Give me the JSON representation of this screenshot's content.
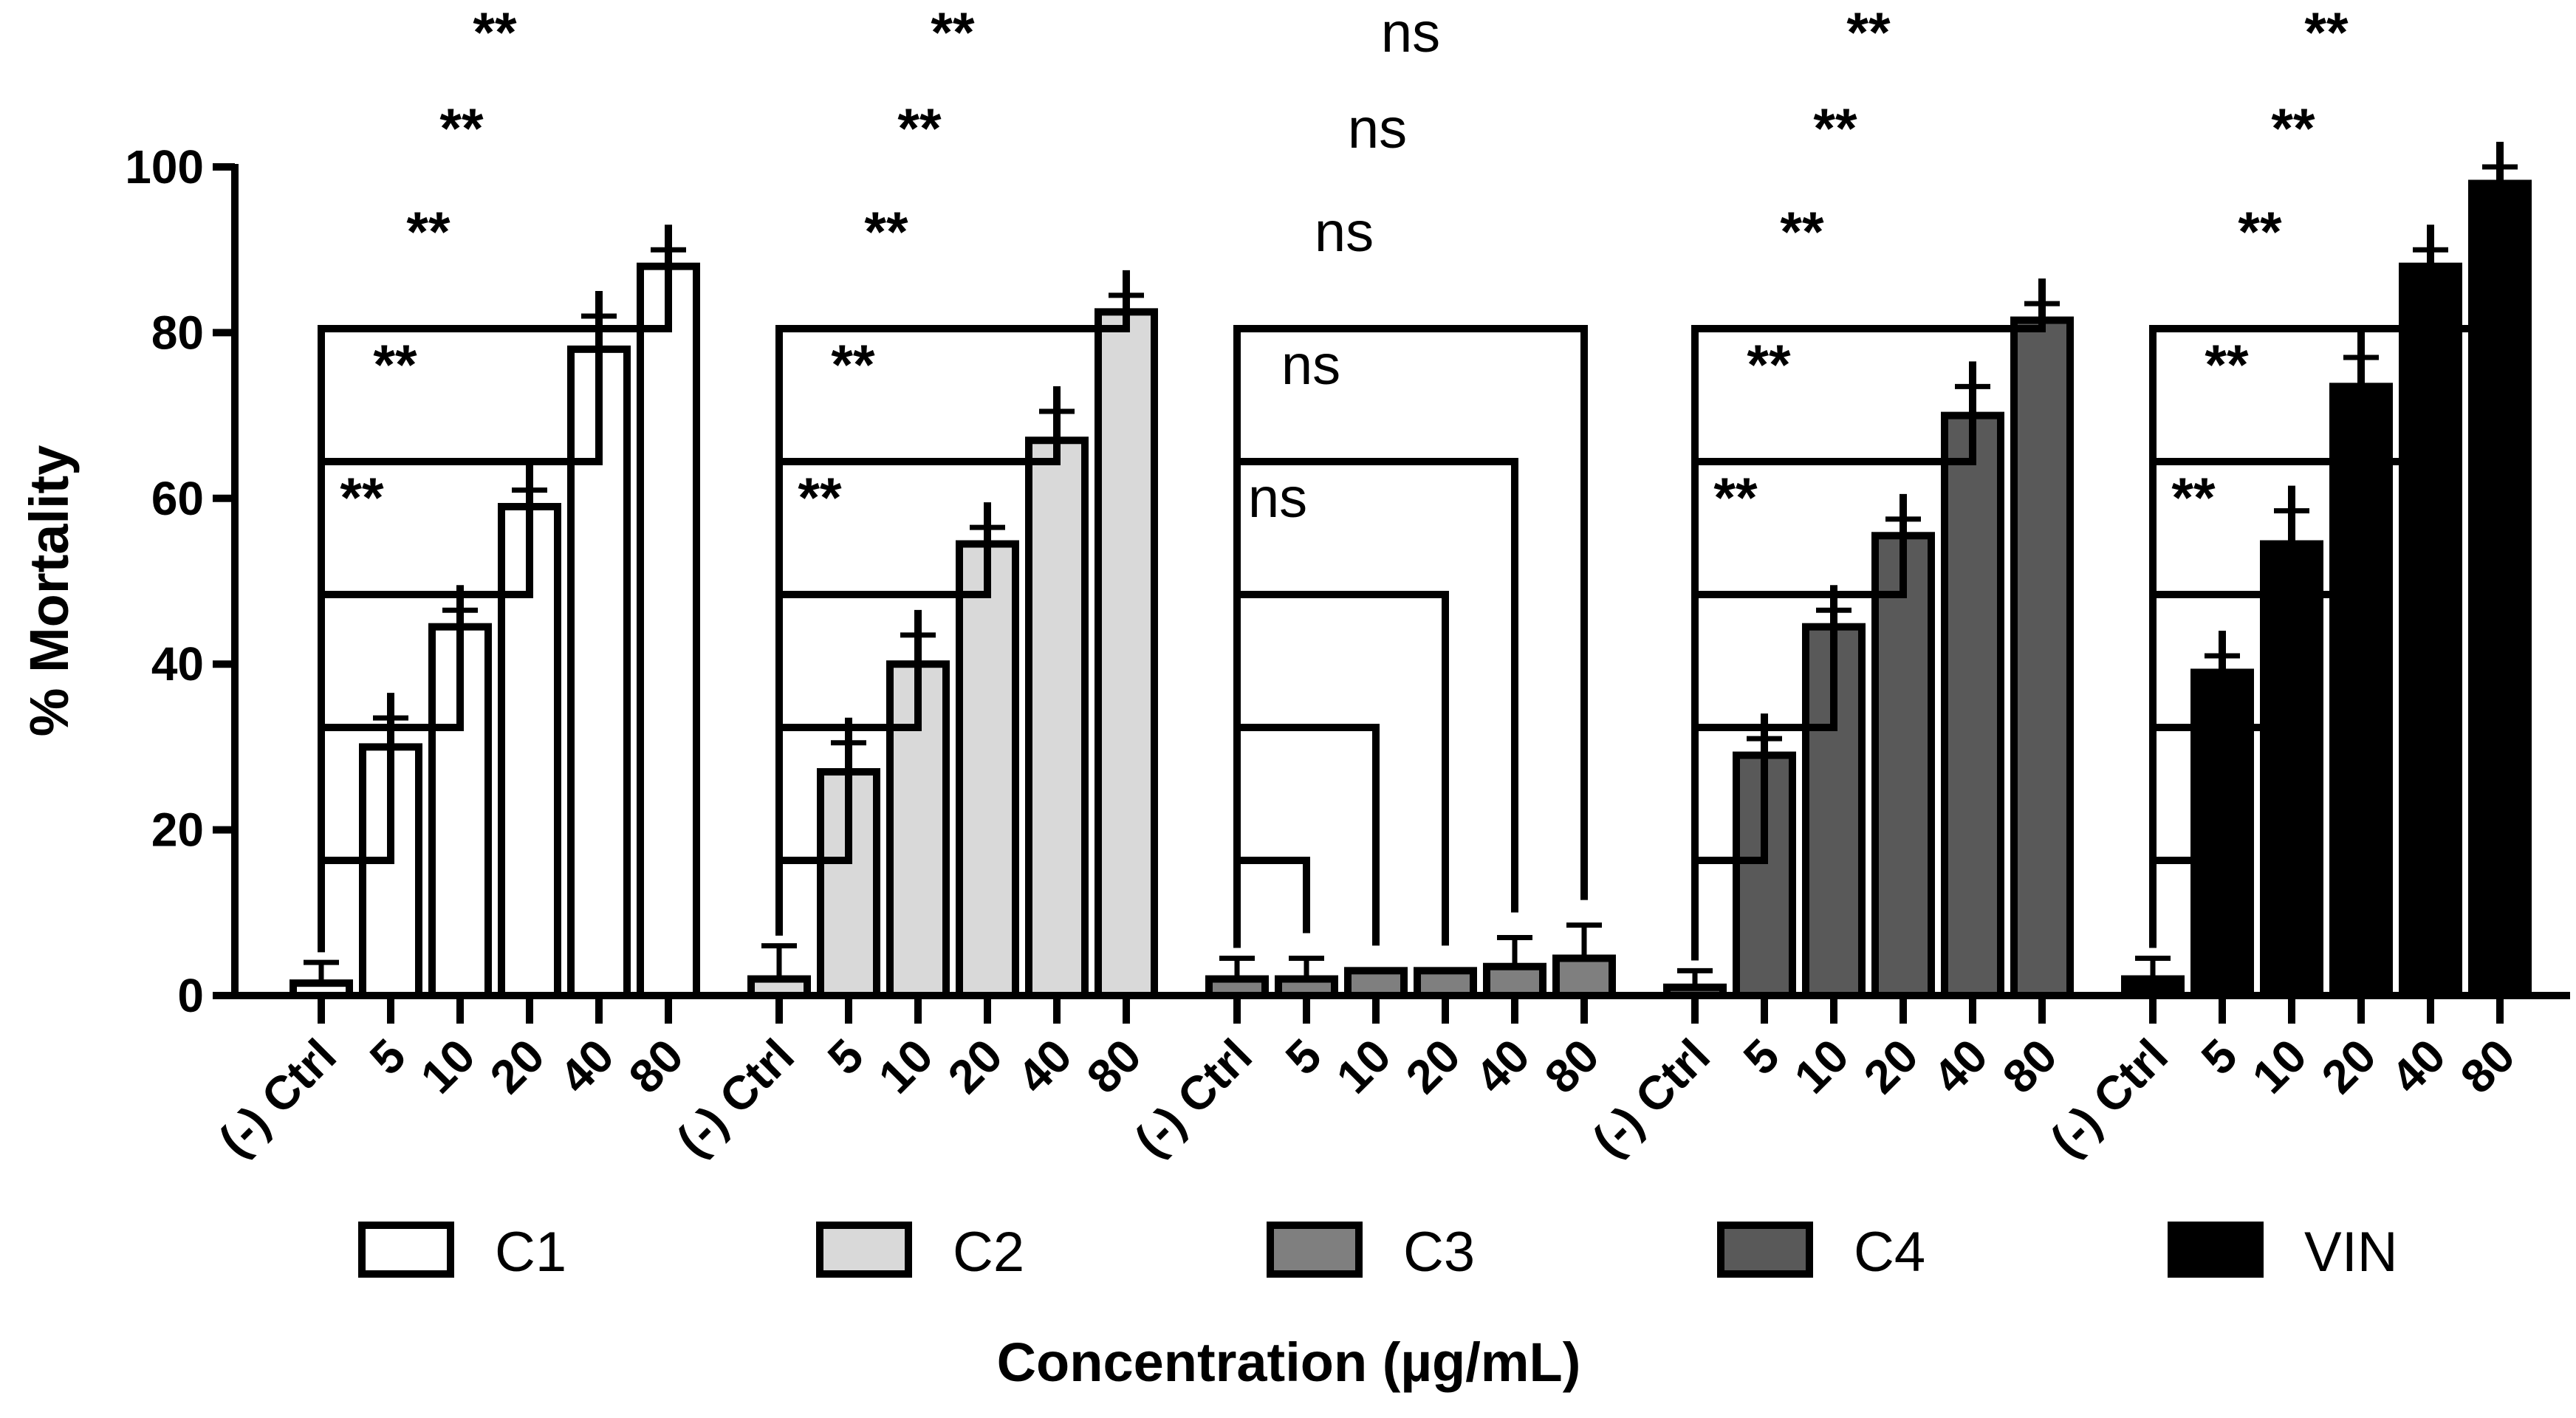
{
  "chart_data": {
    "type": "bar",
    "title": "",
    "xlabel": "Concentration (µg/mL)",
    "ylabel": "% Mortality",
    "ylim": [
      0,
      100
    ],
    "yticks": [
      "0",
      "20",
      "40",
      "60",
      "80",
      "100"
    ],
    "categories": [
      "(-) Ctrl",
      "5",
      "10",
      "20",
      "40",
      "80"
    ],
    "series": [
      {
        "name": "C1",
        "color": "#ffffff",
        "values": [
          1.5,
          30,
          44.5,
          59,
          78,
          88
        ],
        "errors": [
          2.5,
          3.5,
          2,
          2,
          4,
          2
        ],
        "significance": [
          "**",
          "**",
          "**",
          "**",
          "**"
        ]
      },
      {
        "name": "C2",
        "color": "#d9d9d9",
        "values": [
          2,
          27,
          40,
          54.5,
          67,
          82.5
        ],
        "errors": [
          4,
          3.5,
          3.5,
          2,
          3.5,
          2
        ],
        "significance": [
          "**",
          "**",
          "**",
          "**",
          "**"
        ]
      },
      {
        "name": "C3",
        "color": "#7f7f7f",
        "values": [
          2,
          2,
          3,
          3,
          3.5,
          4.5
        ],
        "errors": [
          2.5,
          2.5,
          0,
          0,
          3.5,
          4
        ],
        "significance": [
          "ns",
          "ns",
          "ns",
          "ns",
          "ns"
        ]
      },
      {
        "name": "C4",
        "color": "#595959",
        "values": [
          1,
          29,
          44.5,
          55.5,
          70,
          81.5
        ],
        "errors": [
          2,
          2,
          2,
          2,
          3.5,
          2
        ],
        "significance": [
          "**",
          "**",
          "**",
          "**",
          "**"
        ]
      },
      {
        "name": "VIN",
        "color": "#000000",
        "values": [
          2,
          39,
          54.5,
          73.5,
          88,
          98
        ],
        "errors": [
          2.5,
          2,
          4,
          3.5,
          2,
          2
        ],
        "significance": [
          "**",
          "**",
          "**",
          "**",
          "**"
        ]
      }
    ],
    "legend_position": "bottom"
  }
}
